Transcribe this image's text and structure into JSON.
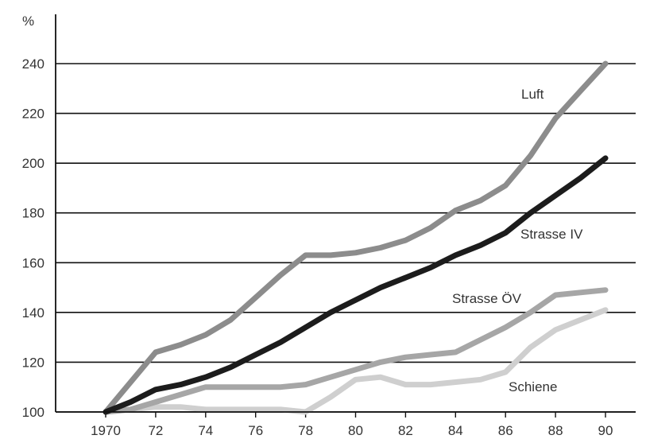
{
  "chart_data": {
    "type": "line",
    "ylabel": "%",
    "x": [
      1970,
      1971,
      1972,
      1973,
      1974,
      1975,
      1976,
      1977,
      1978,
      1979,
      1980,
      1981,
      1982,
      1983,
      1984,
      1985,
      1986,
      1987,
      1988,
      1989,
      1990
    ],
    "x_tick_labels": [
      {
        "value": 1970,
        "label": "1970"
      },
      {
        "value": 1972,
        "label": "72"
      },
      {
        "value": 1974,
        "label": "74"
      },
      {
        "value": 1976,
        "label": "76"
      },
      {
        "value": 1978,
        "label": "78"
      },
      {
        "value": 1980,
        "label": "80"
      },
      {
        "value": 1982,
        "label": "82"
      },
      {
        "value": 1984,
        "label": "84"
      },
      {
        "value": 1986,
        "label": "86"
      },
      {
        "value": 1988,
        "label": "88"
      },
      {
        "value": 1990,
        "label": "90"
      }
    ],
    "y_ticks": [
      100,
      120,
      140,
      160,
      180,
      200,
      220,
      240
    ],
    "xlim": [
      1969,
      1991
    ],
    "ylim": [
      100,
      260
    ],
    "grid": "horizontal",
    "series": [
      {
        "name": "Luft",
        "color": "#8c8c8c",
        "values": [
          100,
          112,
          124,
          127,
          131,
          137,
          146,
          155,
          163,
          163,
          164,
          166,
          169,
          174,
          181,
          185,
          191,
          203,
          218,
          229,
          240
        ]
      },
      {
        "name": "Strasse IV",
        "color": "#1c1c1c",
        "values": [
          100,
          104,
          109,
          111,
          114,
          118,
          123,
          128,
          134,
          140,
          145,
          150,
          154,
          158,
          163,
          167,
          172,
          180,
          187,
          194,
          202
        ]
      },
      {
        "name": "Strasse ÖV",
        "color": "#a6a6a6",
        "values": [
          100,
          101,
          104,
          107,
          110,
          110,
          110,
          110,
          111,
          114,
          117,
          120,
          122,
          123,
          124,
          129,
          134,
          140,
          147,
          148,
          149
        ]
      },
      {
        "name": "Schiene",
        "color": "#cfcfcf",
        "values": [
          100,
          101,
          102,
          102,
          101,
          101,
          101,
          101,
          100,
          106,
          113,
          114,
          111,
          111,
          112,
          113,
          116,
          126,
          133,
          137,
          141
        ]
      }
    ]
  }
}
